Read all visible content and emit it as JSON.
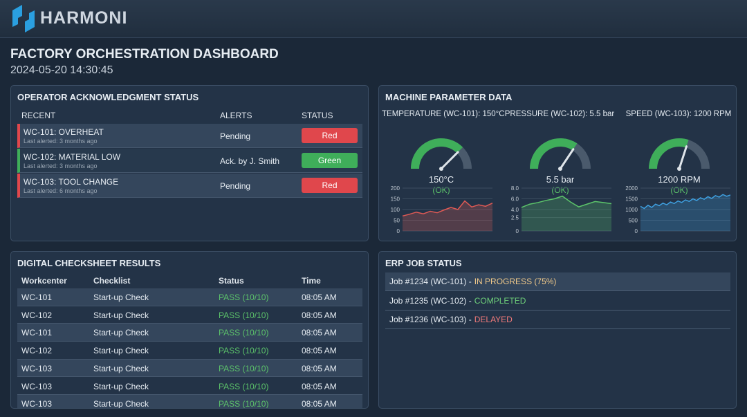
{
  "header": {
    "brand": "HARMONI"
  },
  "page": {
    "title": "FACTORY ORCHESTRATION DASHBOARD",
    "timestamp": "2024-05-20 14:30:45"
  },
  "ack": {
    "title": "OPERATOR ACKNOWLEDGMENT STATUS",
    "columns": [
      "RECENT",
      "ALERTS",
      "STATUS"
    ],
    "rows": [
      {
        "name": "WC-101: OVERHEAT",
        "sub": "Last alerted: 3 months ago",
        "alert": "Pending",
        "status": "Red",
        "color": "#e0474c"
      },
      {
        "name": "WC-102: MATERIAL LOW",
        "sub": "Last alerted: 3 months ago",
        "alert": "Ack. by J. Smith",
        "status": "Green",
        "color": "#3fae5a"
      },
      {
        "name": "WC-103: TOOL CHANGE",
        "sub": "Last alerted: 6 months ago",
        "alert": "Pending",
        "status": "Red",
        "color": "#e0474c"
      }
    ]
  },
  "machine": {
    "title": "MACHINE PARAMETER DATA",
    "gauges": [
      {
        "label": "TEMPERATURE (WC-101): 150°C",
        "value": 150,
        "value_label": "150°C",
        "state": "(OK)",
        "gauge_lim": [
          0,
          200
        ],
        "ylim": [
          0,
          200
        ],
        "yticks": [
          0,
          50,
          100,
          150,
          200
        ],
        "color": "#e05a55",
        "values": [
          70,
          78,
          88,
          80,
          92,
          85,
          98,
          110,
          100,
          140,
          112,
          122,
          115,
          130
        ]
      },
      {
        "label": "PRESSURE (WC-102): 5.5 bar",
        "value": 5.5,
        "value_label": "5.5 bar",
        "state": "(OK)",
        "gauge_lim": [
          0,
          8
        ],
        "ylim": [
          0,
          8
        ],
        "yticks": [
          0,
          2.5,
          {
            "value": 4,
            "label": "4.0"
          },
          {
            "value": 6,
            "label": "6.0"
          },
          {
            "value": 8,
            "label": "8.0"
          }
        ],
        "color": "#5cc46a",
        "values": [
          4.4,
          5.0,
          5.3,
          5.7,
          6.0,
          6.5,
          5.4,
          4.5,
          5.0,
          5.5,
          5.3,
          5.1
        ]
      },
      {
        "label": "SPEED (WC-103): 1200 RPM",
        "value": 1200,
        "value_label": "1200 RPM",
        "state": "(OK)",
        "gauge_lim": [
          0,
          2000
        ],
        "ylim": [
          0,
          2000
        ],
        "yticks": [
          0,
          500,
          1000,
          1500,
          2000
        ],
        "color": "#3fa0e0",
        "values": [
          1150,
          1050,
          1200,
          1100,
          1250,
          1180,
          1300,
          1220,
          1350,
          1280,
          1400,
          1330,
          1450,
          1380,
          1500,
          1420,
          1550,
          1480,
          1600,
          1520,
          1650,
          1580,
          1700,
          1620,
          1680
        ]
      }
    ]
  },
  "checksheet": {
    "title": "DIGITAL CHECKSHEET RESULTS",
    "columns": [
      "Workcenter",
      "Checklist",
      "Status",
      "Time"
    ],
    "rows": [
      [
        "WC-101",
        "Start-up Check",
        "PASS (10/10)",
        "08:05 AM"
      ],
      [
        "WC-102",
        "Start-up Check",
        "PASS (10/10)",
        "08:05 AM"
      ],
      [
        "WC-101",
        "Start-up Check",
        "PASS (10/10)",
        "08:05 AM"
      ],
      [
        "WC-102",
        "Start-up Check",
        "PASS (10/10)",
        "08:05 AM"
      ],
      [
        "WC-103",
        "Start-up Check",
        "PASS (10/10)",
        "08:05 AM"
      ],
      [
        "WC-103",
        "Start-up Check",
        "PASS (10/10)",
        "08:05 AM"
      ],
      [
        "WC-103",
        "Start-up Check",
        "PASS (10/10)",
        "08:05 AM"
      ]
    ]
  },
  "erp": {
    "title": "ERP JOB STATUS",
    "jobs": [
      {
        "job": "Job #1234 (WC-101) -",
        "status": "IN PROGRESS (75%)",
        "color": "#f0c98a"
      },
      {
        "job": "Job #1235 (WC-102) -",
        "status": "COMPLETED",
        "color": "#6fd07a"
      },
      {
        "job": "Job #1236 (WC-103) -",
        "status": "DELAYED",
        "color": "#f07a7a"
      }
    ]
  }
}
